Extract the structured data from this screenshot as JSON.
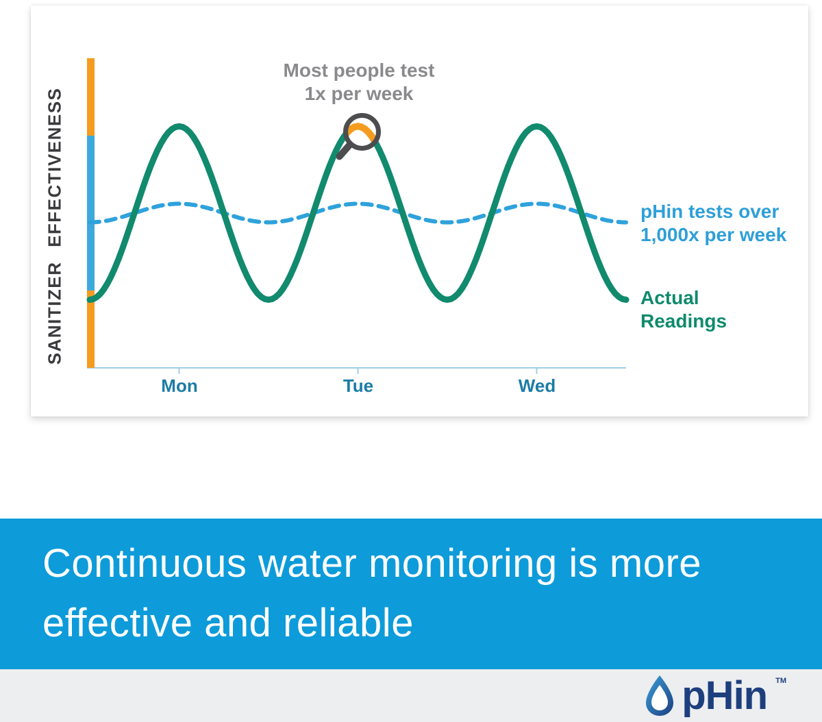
{
  "page": {
    "background": "#FFFFFF"
  },
  "chart_data": {
    "type": "line",
    "title": "Most people test 1x per week",
    "ylabel": "SANITIZER EFFECTIVENESS",
    "xlabel": "",
    "categories": [
      "Mon",
      "Tue",
      "Wed"
    ],
    "grid": false,
    "legend_position": "right",
    "y_range": [
      0,
      100
    ],
    "x_days": [
      0,
      0.25,
      0.5,
      0.75,
      1,
      1.25,
      1.5,
      1.75,
      2,
      2.25,
      2.5,
      2.75,
      3
    ],
    "series": [
      {
        "name": "Actual Readings",
        "color": "#118A6D",
        "style": "solid",
        "stroke_width": 9,
        "center": 50,
        "amplitude": 28,
        "peak_days": [
          0.5,
          1.5,
          2.5
        ],
        "values": [
          22,
          50,
          78,
          50,
          22,
          50,
          78,
          50,
          22,
          50,
          78,
          50,
          22
        ]
      },
      {
        "name": "pHin tests over 1,000x per week",
        "color": "#2EA2DC",
        "style": "dashed",
        "stroke_width": 6,
        "center": 50,
        "amplitude": 3,
        "peak_days": [
          0.5,
          1.5,
          2.5
        ],
        "values": [
          47,
          50,
          53,
          50,
          47,
          50,
          53,
          50,
          47,
          50,
          53,
          50,
          47
        ]
      }
    ],
    "y_axis_zones": [
      {
        "zone": "too-high",
        "from": 75,
        "to": 100,
        "color": "#F59C1F"
      },
      {
        "zone": "safe",
        "from": 25,
        "to": 75,
        "color": "#3DA9DC"
      },
      {
        "zone": "too-low",
        "from": 0,
        "to": 25,
        "color": "#F59C1F"
      }
    ],
    "axis_line_color": "#9FCFE5",
    "annotation_lines": [
      "Most people test",
      "1x per week"
    ],
    "legend_right": {
      "phin_line1": "pHin tests over",
      "phin_line2": "1,000x per week",
      "actual_line1": "Actual",
      "actual_line2": "Readings"
    },
    "marker": {
      "type": "magnifier",
      "day": 1.5,
      "ring_color": "#4D4D4F",
      "highlight_color": "#F59C1F"
    }
  },
  "band": {
    "background": "#0D9BDA",
    "line1": "Continuous water monitoring is more",
    "line2": "effective and reliable",
    "text_color": "#FFFFFF"
  },
  "footer": {
    "background": "#ECEEF0",
    "brand": "pHin",
    "tm": "TM",
    "brand_color": "#1E3F7E",
    "drop_gradient": [
      "#3BA0DB",
      "#1C3E7E"
    ]
  }
}
